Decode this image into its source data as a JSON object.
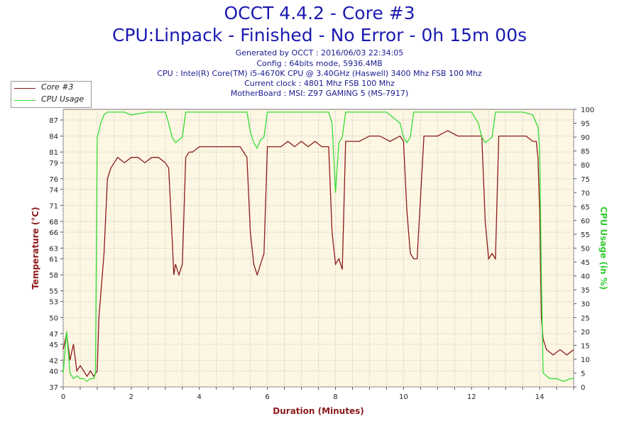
{
  "header": {
    "title": "OCCT 4.4.2 - Core #3",
    "subtitle": "CPU:Linpack - Finished - No Error - 0h 15m 00s",
    "info_lines": [
      "Generated by OCCT : 2016/06/03 22:34:05",
      "Config : 64bits mode, 5936.4MB",
      "CPU : Intel(R) Core(TM) i5-4670K CPU @ 3.40GHz (Haswell) 3400 Mhz FSB 100 Mhz",
      "Current clock : 4801 Mhz FSB 100 Mhz",
      "MotherBoard : MSI: Z97 GAMING 5 (MS-7917)"
    ]
  },
  "legend": {
    "items": [
      {
        "label": "Core #3",
        "color": "#8b1a1a"
      },
      {
        "label": "CPU Usage",
        "color": "#33dd33"
      }
    ]
  },
  "chart_data": {
    "type": "line",
    "title": "OCCT 4.4.2 - Core #3",
    "xlabel": "Duration (Minutes)",
    "ylabel": "Temperature (°C)",
    "y2label": "CPU Usage (in %)",
    "xlim": [
      0,
      15
    ],
    "ylim": [
      37,
      89
    ],
    "y2lim": [
      0,
      100
    ],
    "x_ticks": [
      "0",
      "2",
      "4",
      "6",
      "8",
      "10",
      "12",
      "14"
    ],
    "x_tick_values": [
      0,
      2,
      4,
      6,
      8,
      10,
      12,
      14
    ],
    "y_ticks": [
      37,
      40,
      42,
      45,
      47,
      50,
      53,
      55,
      58,
      61,
      63,
      66,
      68,
      71,
      74,
      76,
      79,
      81,
      84,
      87
    ],
    "y2_ticks": [
      0,
      5,
      10,
      15,
      20,
      25,
      30,
      35,
      40,
      45,
      50,
      55,
      60,
      65,
      70,
      75,
      80,
      85,
      90,
      95,
      100
    ],
    "grid": true,
    "background": "#fdf6e3",
    "series": [
      {
        "name": "Core #3",
        "axis": "left",
        "color": "#8b1a1a",
        "x": [
          0,
          0.1,
          0.2,
          0.3,
          0.4,
          0.5,
          0.6,
          0.7,
          0.8,
          0.9,
          1.0,
          1.05,
          1.1,
          1.2,
          1.3,
          1.4,
          1.5,
          1.6,
          1.8,
          2.0,
          2.2,
          2.4,
          2.6,
          2.8,
          3.0,
          3.1,
          3.2,
          3.25,
          3.3,
          3.4,
          3.5,
          3.6,
          3.7,
          3.8,
          4.0,
          4.2,
          4.4,
          4.6,
          4.8,
          5.0,
          5.2,
          5.4,
          5.5,
          5.6,
          5.7,
          5.8,
          5.9,
          6.0,
          6.2,
          6.4,
          6.6,
          6.8,
          7.0,
          7.2,
          7.4,
          7.6,
          7.8,
          7.9,
          8.0,
          8.1,
          8.2,
          8.3,
          8.5,
          8.7,
          9.0,
          9.3,
          9.6,
          9.9,
          10.0,
          10.1,
          10.2,
          10.3,
          10.4,
          10.6,
          10.8,
          11.0,
          11.3,
          11.6,
          11.9,
          12.2,
          12.3,
          12.4,
          12.5,
          12.6,
          12.7,
          12.8,
          13.0,
          13.2,
          13.4,
          13.6,
          13.8,
          13.9,
          13.95,
          14.0,
          14.05,
          14.1,
          14.2,
          14.4,
          14.6,
          14.8,
          15.0
        ],
        "values": [
          44,
          47,
          42,
          45,
          40,
          41,
          40,
          39,
          40,
          39,
          40,
          50,
          54,
          62,
          76,
          78,
          79,
          80,
          79,
          80,
          80,
          79,
          80,
          80,
          79,
          78,
          65,
          58,
          60,
          58,
          60,
          80,
          81,
          81,
          82,
          82,
          82,
          82,
          82,
          82,
          82,
          80,
          66,
          60,
          58,
          60,
          62,
          82,
          82,
          82,
          83,
          82,
          83,
          82,
          83,
          82,
          82,
          66,
          60,
          61,
          59,
          83,
          83,
          83,
          84,
          84,
          83,
          84,
          83,
          70,
          62,
          61,
          61,
          84,
          84,
          84,
          85,
          84,
          84,
          84,
          84,
          68,
          61,
          62,
          61,
          84,
          84,
          84,
          84,
          84,
          83,
          83,
          80,
          70,
          50,
          46,
          44,
          43,
          44,
          43,
          44
        ]
      },
      {
        "name": "CPU Usage",
        "axis": "right",
        "color": "#33dd33",
        "x": [
          0,
          0.1,
          0.2,
          0.3,
          0.4,
          0.5,
          0.6,
          0.7,
          0.8,
          0.9,
          0.95,
          1.0,
          1.05,
          1.1,
          1.2,
          1.3,
          1.5,
          1.8,
          2.0,
          2.5,
          3.0,
          3.1,
          3.2,
          3.3,
          3.4,
          3.5,
          3.6,
          3.7,
          3.8,
          4.0,
          4.5,
          5.0,
          5.4,
          5.5,
          5.6,
          5.7,
          5.8,
          5.9,
          6.0,
          6.5,
          7.0,
          7.5,
          7.8,
          7.9,
          8.0,
          8.1,
          8.2,
          8.3,
          8.5,
          9.0,
          9.5,
          9.9,
          10.0,
          10.1,
          10.2,
          10.3,
          10.4,
          10.6,
          11.0,
          11.5,
          12.0,
          12.2,
          12.3,
          12.4,
          12.5,
          12.6,
          12.7,
          12.8,
          13.0,
          13.5,
          13.8,
          13.9,
          13.95,
          14.0,
          14.05,
          14.1,
          14.3,
          14.5,
          14.7,
          14.9,
          15.0
        ],
        "values": [
          5,
          20,
          5,
          3,
          4,
          3,
          3,
          2,
          3,
          3,
          5,
          90,
          92,
          95,
          98,
          99,
          99,
          99,
          98,
          99,
          99,
          95,
          90,
          88,
          89,
          90,
          99,
          99,
          99,
          99,
          99,
          99,
          99,
          92,
          88,
          86,
          89,
          90,
          99,
          99,
          99,
          99,
          99,
          95,
          70,
          88,
          90,
          99,
          99,
          99,
          99,
          95,
          90,
          88,
          90,
          99,
          99,
          99,
          99,
          99,
          99,
          95,
          90,
          88,
          89,
          90,
          99,
          99,
          99,
          99,
          98,
          95,
          94,
          85,
          40,
          5,
          3,
          3,
          2,
          3,
          3
        ]
      }
    ]
  }
}
